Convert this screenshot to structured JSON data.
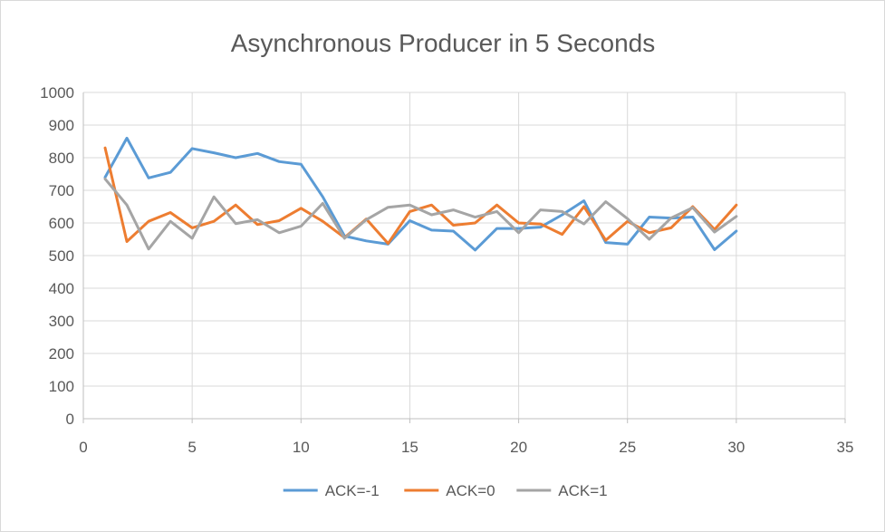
{
  "chart_data": {
    "type": "line",
    "title": "Asynchronous Producer in 5 Seconds",
    "xlabel": "",
    "ylabel": "",
    "xlim": [
      0,
      35
    ],
    "ylim": [
      0,
      1000
    ],
    "xticks": [
      0,
      5,
      10,
      15,
      20,
      25,
      30,
      35
    ],
    "yticks": [
      0,
      100,
      200,
      300,
      400,
      500,
      600,
      700,
      800,
      900,
      1000
    ],
    "grid": true,
    "legend_position": "bottom",
    "x": [
      1,
      2,
      3,
      4,
      5,
      6,
      7,
      8,
      9,
      10,
      11,
      12,
      13,
      14,
      15,
      16,
      17,
      18,
      19,
      20,
      21,
      22,
      23,
      24,
      25,
      26,
      27,
      28,
      29,
      30
    ],
    "series": [
      {
        "name": "ACK=-1",
        "color": "#5b9bd5",
        "values": [
          740,
          860,
          738,
          755,
          828,
          815,
          800,
          813,
          788,
          780,
          680,
          560,
          545,
          535,
          607,
          578,
          575,
          517,
          583,
          583,
          587,
          625,
          668,
          540,
          535,
          618,
          615,
          618,
          518,
          575
        ]
      },
      {
        "name": "ACK=0",
        "color": "#ed7d31",
        "values": [
          830,
          543,
          605,
          632,
          585,
          605,
          655,
          595,
          607,
          645,
          605,
          555,
          612,
          537,
          635,
          655,
          593,
          600,
          655,
          600,
          597,
          565,
          650,
          547,
          605,
          570,
          585,
          650,
          580,
          655
        ]
      },
      {
        "name": "ACK=1",
        "color": "#a5a5a5",
        "values": [
          735,
          655,
          520,
          605,
          553,
          680,
          598,
          610,
          570,
          590,
          660,
          553,
          610,
          648,
          655,
          625,
          640,
          618,
          635,
          570,
          640,
          635,
          597,
          665,
          613,
          550,
          615,
          647,
          572,
          620
        ]
      }
    ]
  }
}
